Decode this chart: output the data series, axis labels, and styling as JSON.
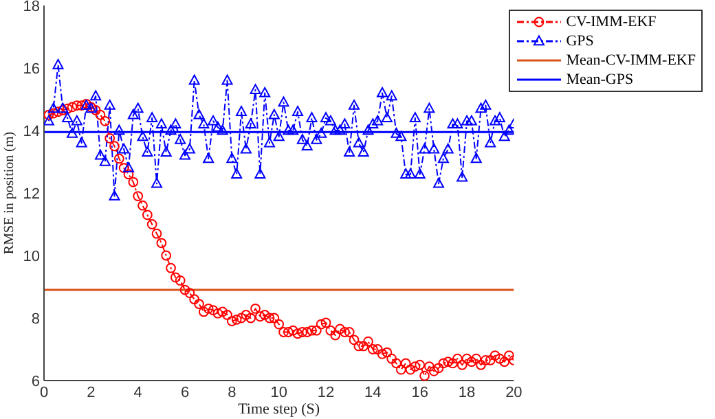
{
  "chart_data": {
    "type": "line",
    "xlabel": "Time step (S)",
    "ylabel": "RMSE in position (m)",
    "x": [
      0.2,
      0.4,
      0.6,
      0.8,
      1.0,
      1.2,
      1.4,
      1.6,
      1.8,
      2.0,
      2.2,
      2.4,
      2.6,
      2.8,
      3.0,
      3.2,
      3.4,
      3.6,
      3.8,
      4.0,
      4.2,
      4.4,
      4.6,
      4.8,
      5.0,
      5.2,
      5.4,
      5.6,
      5.8,
      6.0,
      6.2,
      6.4,
      6.6,
      6.8,
      7.0,
      7.2,
      7.4,
      7.6,
      7.8,
      8.0,
      8.2,
      8.4,
      8.6,
      8.8,
      9.0,
      9.2,
      9.4,
      9.6,
      9.8,
      10.0,
      10.2,
      10.4,
      10.6,
      10.8,
      11.0,
      11.2,
      11.4,
      11.6,
      11.8,
      12.0,
      12.2,
      12.4,
      12.6,
      12.8,
      13.0,
      13.2,
      13.4,
      13.6,
      13.8,
      14.0,
      14.2,
      14.4,
      14.6,
      14.8,
      15.0,
      15.2,
      15.4,
      15.6,
      15.8,
      16.0,
      16.2,
      16.4,
      16.6,
      16.8,
      17.0,
      17.2,
      17.4,
      17.6,
      17.8,
      18.0,
      18.2,
      18.4,
      18.6,
      18.8,
      19.0,
      19.2,
      19.4,
      19.6,
      19.8,
      20.0
    ],
    "series": [
      {
        "name": "CV-IMM-EKF",
        "color": "#ff0000",
        "marker": "circle",
        "line_style": "dashed",
        "values": [
          14.5,
          14.55,
          14.6,
          14.65,
          14.7,
          14.75,
          14.8,
          14.8,
          14.85,
          14.75,
          14.65,
          14.5,
          14.3,
          13.75,
          13.5,
          13.1,
          12.8,
          12.6,
          12.35,
          11.9,
          11.6,
          11.3,
          11.0,
          10.7,
          10.4,
          10.0,
          9.6,
          9.3,
          9.2,
          8.9,
          8.8,
          8.6,
          8.45,
          8.2,
          8.3,
          8.25,
          8.15,
          8.2,
          8.1,
          7.9,
          7.95,
          8.0,
          8.1,
          8.0,
          8.3,
          8.05,
          8.1,
          8.0,
          8.0,
          7.8,
          7.55,
          7.55,
          7.6,
          7.5,
          7.55,
          7.55,
          7.6,
          7.6,
          7.8,
          7.85,
          7.6,
          7.45,
          7.65,
          7.55,
          7.55,
          7.3,
          7.1,
          7.1,
          7.25,
          7.0,
          7.0,
          6.85,
          6.9,
          6.7,
          6.55,
          6.35,
          6.55,
          6.35,
          6.45,
          6.5,
          6.15,
          6.45,
          6.3,
          6.4,
          6.55,
          6.6,
          6.55,
          6.7,
          6.5,
          6.7,
          6.6,
          6.7,
          6.5,
          6.65,
          6.65,
          6.8,
          6.7,
          6.6,
          6.8,
          6.65
        ]
      },
      {
        "name": "GPS",
        "color": "#0000ff",
        "marker": "triangle",
        "line_style": "dashed",
        "values": [
          14.3,
          14.7,
          16.1,
          14.7,
          14.4,
          13.9,
          14.3,
          13.6,
          14.8,
          14.7,
          15.1,
          13.2,
          13.0,
          14.8,
          11.9,
          14.0,
          13.4,
          12.8,
          14.5,
          14.7,
          13.8,
          13.3,
          14.4,
          12.3,
          14.2,
          13.3,
          14.0,
          14.2,
          13.7,
          13.2,
          13.4,
          15.6,
          14.5,
          14.2,
          13.1,
          14.3,
          14.1,
          14.0,
          15.6,
          13.1,
          12.6,
          14.6,
          13.4,
          14.2,
          15.3,
          12.6,
          15.2,
          13.6,
          14.5,
          13.8,
          14.9,
          14.0,
          14.0,
          14.6,
          13.7,
          13.5,
          14.4,
          13.7,
          13.9,
          14.4,
          14.3,
          14.0,
          14.0,
          14.2,
          13.3,
          14.8,
          13.6,
          13.3,
          14.0,
          14.2,
          14.3,
          15.2,
          14.4,
          15.1,
          13.9,
          13.8,
          12.6,
          12.6,
          14.4,
          12.6,
          13.4,
          14.7,
          13.4,
          12.3,
          13.1,
          13.4,
          14.2,
          14.2,
          12.5,
          14.3,
          14.3,
          13.1,
          14.7,
          14.8,
          13.6,
          14.3,
          14.4,
          13.8,
          14.0,
          14.2
        ]
      }
    ],
    "ref_lines": [
      {
        "axis": "y",
        "value": 8.9,
        "label": "Mean-CV-IMM-EKF",
        "color": "#d95319",
        "line_style": "solid"
      },
      {
        "axis": "y",
        "value": 13.95,
        "label": "Mean-GPS",
        "color": "#0000ff",
        "line_style": "solid"
      }
    ],
    "xlim": [
      0,
      20
    ],
    "xticks": [
      0,
      2,
      4,
      6,
      8,
      10,
      12,
      14,
      16,
      18,
      20
    ],
    "ylim": [
      6,
      18
    ],
    "yticks": [
      6,
      8,
      10,
      12,
      14,
      16,
      18
    ],
    "grid": false,
    "legend": "top right"
  }
}
